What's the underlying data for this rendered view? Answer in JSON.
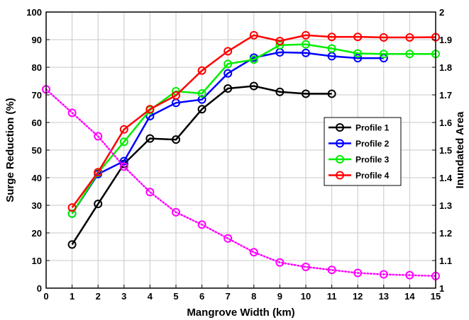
{
  "chart_data": {
    "type": "line",
    "xlabel": "Mangrove Width (km)",
    "ylabel": "Surge Reduction (%)",
    "y2label": "Inundated Area",
    "xlim": [
      0,
      15
    ],
    "ylim": [
      0,
      100
    ],
    "y2lim": [
      1,
      2
    ],
    "x_ticks": [
      "0",
      "1",
      "2",
      "3",
      "4",
      "5",
      "6",
      "7",
      "8",
      "9",
      "10",
      "11",
      "12",
      "13",
      "14",
      "15"
    ],
    "y_ticks": [
      "0",
      "10",
      "20",
      "30",
      "40",
      "50",
      "60",
      "70",
      "80",
      "90",
      "100"
    ],
    "y2_ticks": [
      "1",
      "1.1",
      "1.2",
      "1.3",
      "1.4",
      "1.5",
      "1.6",
      "1.7",
      "1.8",
      "1.9",
      "2"
    ],
    "grid": true,
    "legend_position": "right",
    "series": [
      {
        "name": "Profile 1",
        "color": "#000000",
        "axis": "left",
        "style": "solid",
        "x": [
          1,
          2,
          3,
          4,
          5,
          6,
          7,
          8,
          9,
          10,
          11
        ],
        "values": [
          15.8,
          30.5,
          45.0,
          54.2,
          53.8,
          64.8,
          72.3,
          73.2,
          71.1,
          70.4,
          70.4
        ]
      },
      {
        "name": "Profile 2",
        "color": "#0000ff",
        "axis": "left",
        "style": "solid",
        "x": [
          1,
          2,
          3,
          4,
          5,
          6,
          7,
          8,
          9,
          10,
          11,
          12,
          13
        ],
        "values": [
          27.0,
          41.3,
          46.0,
          62.3,
          67.1,
          68.3,
          77.8,
          83.5,
          85.4,
          85.2,
          84.0,
          83.3,
          83.3
        ]
      },
      {
        "name": "Profile 3",
        "color": "#00ee00",
        "axis": "left",
        "style": "solid",
        "x": [
          1,
          2,
          3,
          4,
          5,
          6,
          7,
          8,
          9,
          10,
          11,
          12,
          13,
          14,
          15
        ],
        "values": [
          27.0,
          41.8,
          53.0,
          64.5,
          71.3,
          70.5,
          81.2,
          82.8,
          88.0,
          88.3,
          86.8,
          85.0,
          84.8,
          84.8,
          84.8
        ]
      },
      {
        "name": "Profile 4",
        "color": "#ff0000",
        "axis": "left",
        "style": "solid",
        "x": [
          1,
          2,
          3,
          4,
          5,
          6,
          7,
          8,
          9,
          10,
          11,
          12,
          13,
          14,
          15
        ],
        "values": [
          29.2,
          42.0,
          57.5,
          64.8,
          69.8,
          78.8,
          85.8,
          91.6,
          89.5,
          91.6,
          91.0,
          91.0,
          90.8,
          90.8,
          90.9
        ]
      },
      {
        "color": "#ff00ff",
        "axis": "right",
        "style": "dotted",
        "x": [
          0,
          1,
          2,
          3,
          4,
          5,
          6,
          7,
          8,
          9,
          10,
          11,
          12,
          13,
          14,
          15
        ],
        "values": [
          1.72,
          1.635,
          1.55,
          1.44,
          1.348,
          1.275,
          1.23,
          1.18,
          1.13,
          1.093,
          1.077,
          1.066,
          1.055,
          1.05,
          1.047,
          1.044
        ]
      }
    ]
  }
}
